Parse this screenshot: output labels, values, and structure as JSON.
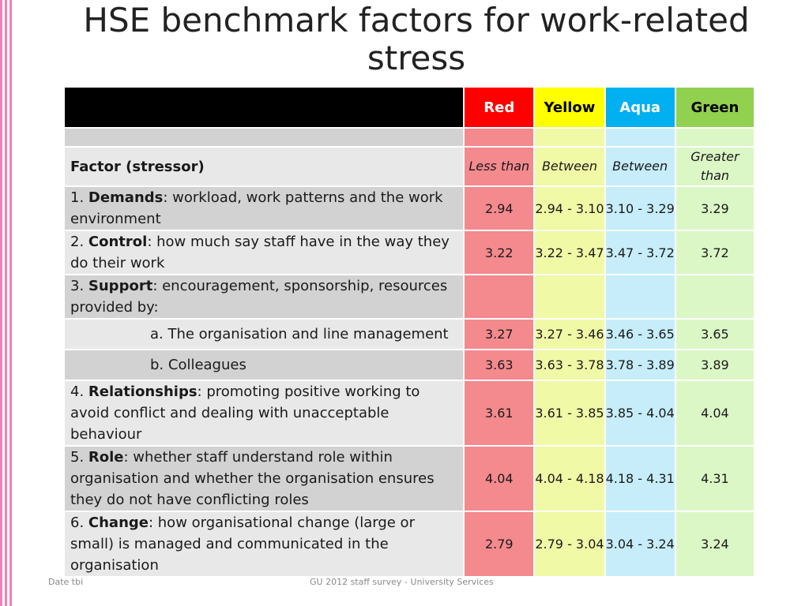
{
  "slide": {
    "title_line1": "HSE benchmark factors for work-related",
    "title_line2": "stress"
  },
  "colors": {
    "red_header": "#ff0000",
    "yellow_header": "#ffff00",
    "aqua_header": "#00b0f0",
    "green_header": "#92d050"
  },
  "table": {
    "headers": {
      "blank": "",
      "red": "Red",
      "yellow": "Yellow",
      "aqua": "Aqua",
      "green": "Green"
    },
    "criteria": {
      "factor_label": "Factor (stressor)",
      "red": "Less than",
      "yellow": "Between",
      "aqua": "Between",
      "green_line1": "Greater",
      "green_line2": "than"
    },
    "rows": [
      {
        "num": "1. ",
        "name": "Demands",
        "desc": ": workload, work patterns and the work environment",
        "red": "2.94",
        "yellow": "2.94 - 3.10",
        "aqua": "3.10 - 3.29",
        "green": "3.29"
      },
      {
        "num": "2. ",
        "name": "Control",
        "desc": ": how much say staff have in the way they do their work",
        "red": "3.22",
        "yellow": "3.22 - 3.47",
        "aqua": "3.47 - 3.72",
        "green": "3.72"
      },
      {
        "num": "3. ",
        "name": "Support",
        "desc": ": encouragement, sponsorship, resources provided by:"
      },
      {
        "sub": "a. The organisation and line management",
        "red": "3.27",
        "yellow": "3.27 - 3.46",
        "aqua": "3.46 - 3.65",
        "green": "3.65"
      },
      {
        "sub": "b. Colleagues",
        "red": "3.63",
        "yellow": "3.63 - 3.78",
        "aqua": "3.78 - 3.89",
        "green": "3.89"
      },
      {
        "num": "4. ",
        "name": "Relationships",
        "desc": ": promoting positive working to avoid conflict and dealing with unacceptable behaviour",
        "red": "3.61",
        "yellow": "3.61 - 3.85",
        "aqua": "3.85 - 4.04",
        "green": "4.04"
      },
      {
        "num": "5. ",
        "name": "Role",
        "desc": ": whether staff understand role within organisation and whether the organisation ensures they do not have conflicting roles",
        "red": "4.04",
        "yellow": "4.04 - 4.18",
        "aqua": "4.18 - 4.31",
        "green": "4.31"
      },
      {
        "num": "6. ",
        "name": "Change",
        "desc": ": how organisational change (large or small) is managed and communicated in the organisation",
        "red": "2.79",
        "yellow": "2.79 - 3.04",
        "aqua": "3.04 - 3.24",
        "green": "3.24"
      }
    ]
  },
  "footer": {
    "left": "Date tbi",
    "center": "GU 2012 staff survey -  University Services"
  }
}
